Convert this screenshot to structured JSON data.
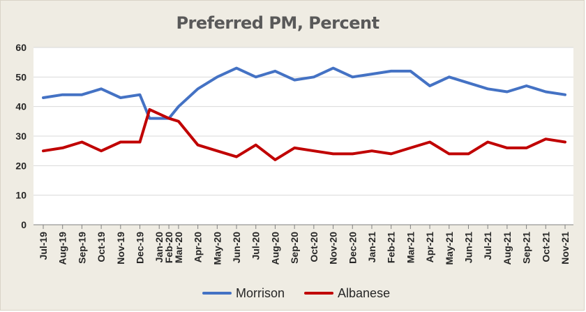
{
  "chart_data": {
    "type": "line",
    "title": "Preferred PM, Percent",
    "xlabel": "",
    "ylabel": "",
    "ylim": [
      0,
      60
    ],
    "yticks": [
      0,
      10,
      20,
      30,
      40,
      50,
      60
    ],
    "grid": true,
    "legend": "bottom",
    "categories": [
      "Jul-19",
      "Aug-19",
      "Sep-19",
      "Oct-19",
      "Nov-19",
      "Dec-19",
      "Jan-20",
      "Feb-20",
      "Mar-20",
      "Apr-20",
      "May-20",
      "Jun-20",
      "Jul-20",
      "Aug-20",
      "Sep-20",
      "Oct-20",
      "Nov-20",
      "Dec-20",
      "Jan-21",
      "Feb-21",
      "Mar-21",
      "Apr-21",
      "May-21",
      "Jun-21",
      "Jul-21",
      "Aug-21",
      "Sep-21",
      "Oct-21",
      "Nov-21"
    ],
    "x_positions": [
      0,
      1,
      2,
      3,
      4,
      5,
      6,
      6.5,
      7,
      8,
      9,
      10,
      11,
      12,
      13,
      14,
      15,
      16,
      17,
      18,
      19,
      20,
      21,
      22,
      23,
      24,
      25,
      26,
      27
    ],
    "series": [
      {
        "name": "Morrison",
        "color": "#4472c4",
        "points": [
          [
            0,
            43
          ],
          [
            1,
            44
          ],
          [
            2,
            44
          ],
          [
            3,
            46
          ],
          [
            4,
            43
          ],
          [
            5,
            44
          ],
          [
            5.5,
            36
          ],
          [
            6.5,
            36
          ],
          [
            7,
            40
          ],
          [
            8,
            46
          ],
          [
            9,
            50
          ],
          [
            10,
            53
          ],
          [
            11,
            50
          ],
          [
            12,
            52
          ],
          [
            13,
            49
          ],
          [
            14,
            50
          ],
          [
            15,
            53
          ],
          [
            16,
            50
          ],
          [
            17,
            51
          ],
          [
            18,
            52
          ],
          [
            19,
            52
          ],
          [
            20,
            47
          ],
          [
            21,
            50
          ],
          [
            22,
            48
          ],
          [
            23,
            46
          ],
          [
            24,
            45
          ],
          [
            25,
            47
          ],
          [
            26,
            45
          ],
          [
            27,
            44
          ]
        ]
      },
      {
        "name": "Albanese",
        "color": "#c00000",
        "points": [
          [
            0,
            25
          ],
          [
            1,
            26
          ],
          [
            2,
            28
          ],
          [
            3,
            25
          ],
          [
            4,
            28
          ],
          [
            5,
            28
          ],
          [
            5.5,
            39
          ],
          [
            6.5,
            36
          ],
          [
            7,
            35
          ],
          [
            8,
            27
          ],
          [
            9,
            25
          ],
          [
            10,
            23
          ],
          [
            11,
            27
          ],
          [
            12,
            22
          ],
          [
            13,
            26
          ],
          [
            14,
            25
          ],
          [
            15,
            24
          ],
          [
            16,
            24
          ],
          [
            17,
            25
          ],
          [
            18,
            24
          ],
          [
            19,
            26
          ],
          [
            20,
            28
          ],
          [
            21,
            24
          ],
          [
            22,
            24
          ],
          [
            23,
            28
          ],
          [
            24,
            26
          ],
          [
            25,
            26
          ],
          [
            26,
            29
          ],
          [
            27,
            28
          ]
        ]
      }
    ]
  }
}
